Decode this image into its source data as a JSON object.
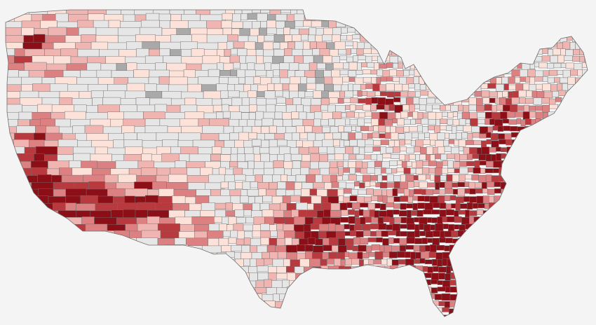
{
  "map": {
    "type": "choropleth",
    "region": "contiguous-united-states",
    "unit": "county",
    "background_color": "#f4f4f4",
    "border_color": "#6e6e6e",
    "palette": {
      "no_data": "#a9a9a9",
      "class_0": "#e6e6e6",
      "class_1": "#fde2da",
      "class_2": "#f1b5b1",
      "class_3": "#dc8082",
      "class_4": "#b83a3f",
      "class_5": "#8c0f17"
    },
    "legend_visible": false,
    "title_visible": false
  }
}
